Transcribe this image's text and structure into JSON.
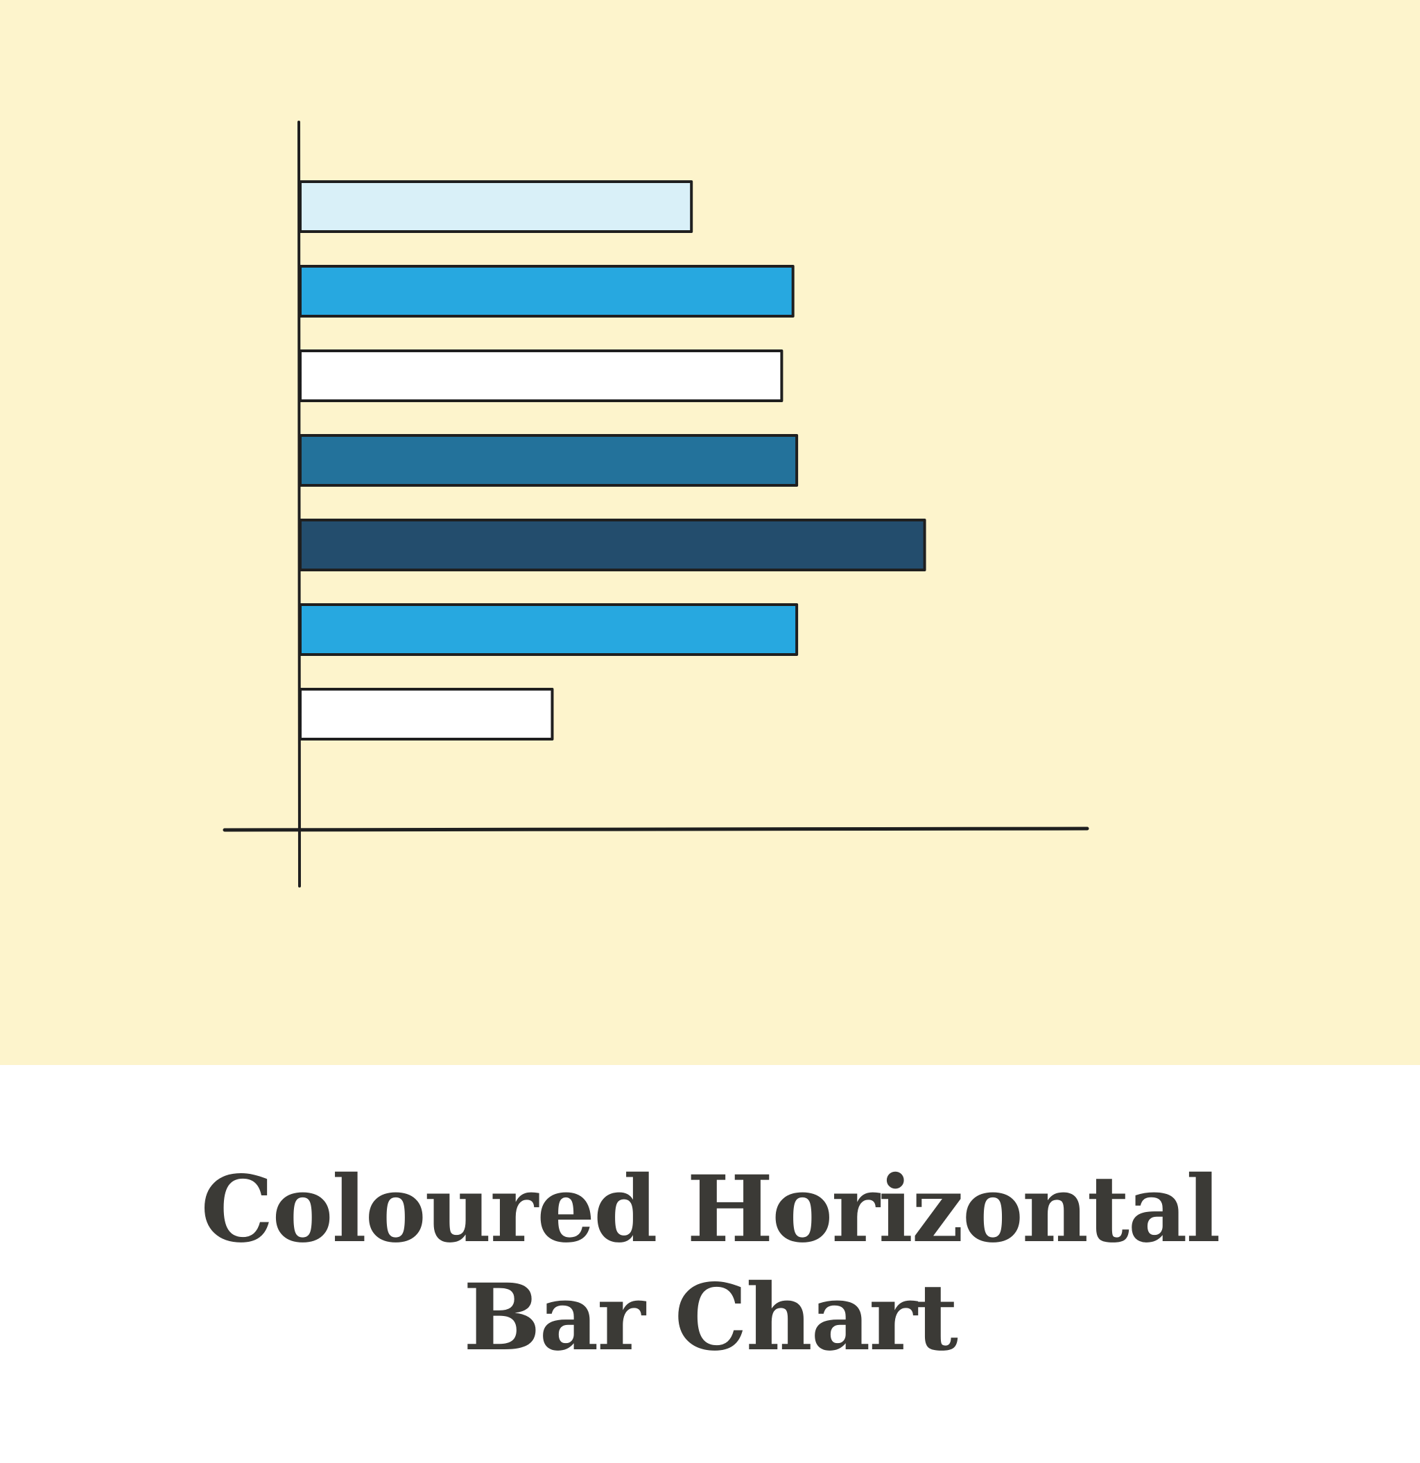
{
  "caption": {
    "line1": "Coloured Horizontal",
    "line2": "Bar Chart"
  },
  "colors": {
    "background_panel": "#fdf4cc",
    "caption_background": "#ffffff",
    "caption_text": "#3b3a36",
    "outline": "#1f1f1f"
  },
  "chart_data": {
    "type": "bar",
    "orientation": "horizontal",
    "title": "",
    "xlabel": "",
    "ylabel": "",
    "grid": false,
    "xlim": [
      0,
      100
    ],
    "series": [
      {
        "values": [
          52,
          65.5,
          64,
          66,
          83,
          66,
          33.5
        ],
        "colors": [
          "#d9f0f8",
          "#27a8e0",
          "#ffffff",
          "#23729b",
          "#234d6d",
          "#27a8e0",
          "#ffffff"
        ]
      }
    ]
  }
}
